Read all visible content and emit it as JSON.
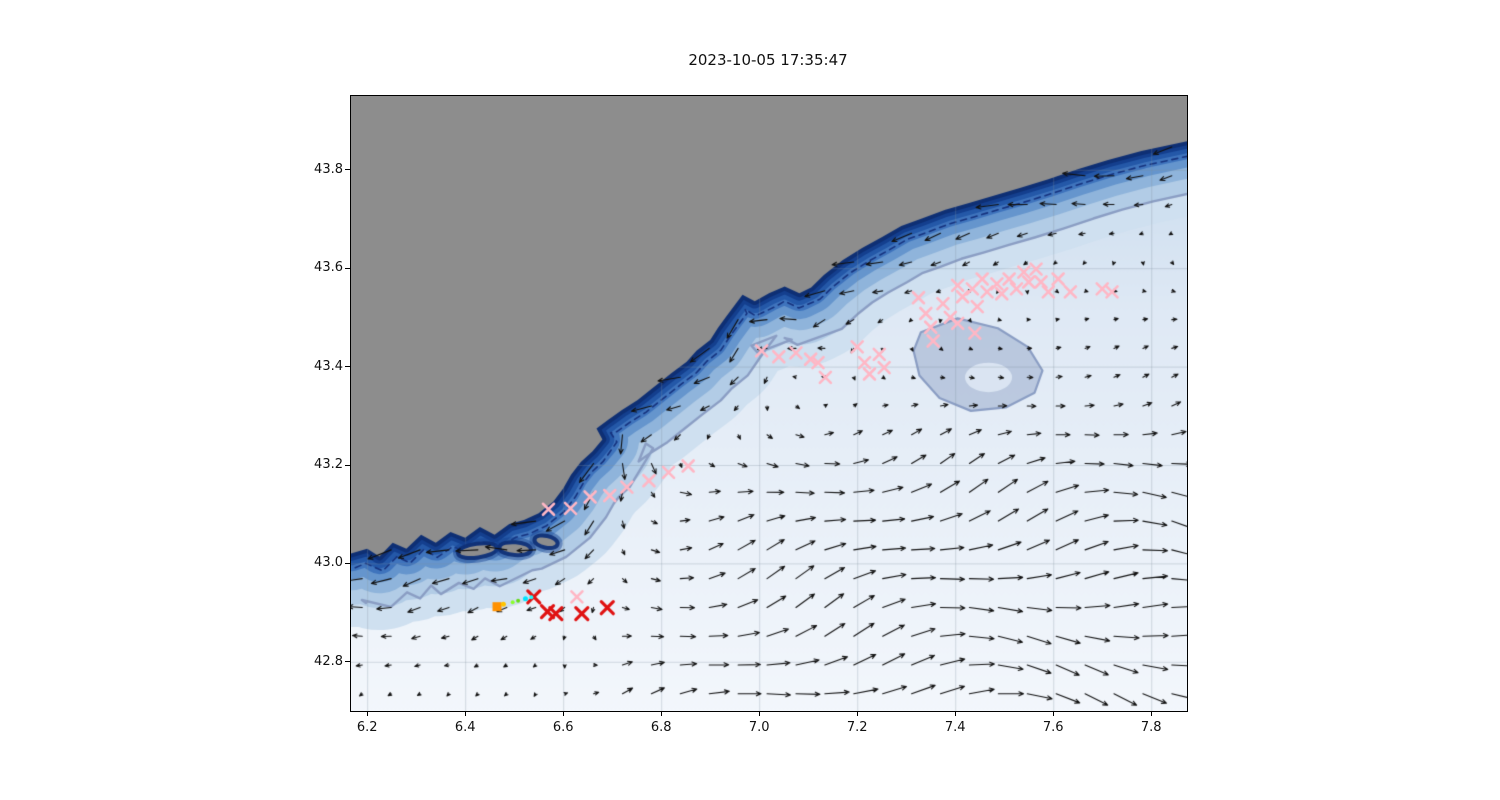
{
  "figure": {
    "background": "#ffffff"
  },
  "chart_data": {
    "type": "scatter",
    "title": "2023-10-05 17:35:47",
    "xlabel": "",
    "ylabel": "",
    "xlim": [
      6.167,
      7.873
    ],
    "ylim": [
      42.7,
      43.95
    ],
    "xticks": [
      6.2,
      6.4,
      6.6,
      6.8,
      7.0,
      7.2,
      7.4,
      7.6,
      7.8
    ],
    "xtick_labels": [
      "6.2",
      "6.4",
      "6.6",
      "6.8",
      "7.0",
      "7.2",
      "7.4",
      "7.6",
      "7.8"
    ],
    "yticks": [
      42.8,
      43.0,
      43.2,
      43.4,
      43.6,
      43.8
    ],
    "ytick_labels": [
      "42.8",
      "43.0",
      "43.2",
      "43.4",
      "43.6",
      "43.8"
    ],
    "grid": true,
    "legend": "none",
    "map": {
      "land_color": "#8d8d8d",
      "sea_gradient": [
        [
          "0",
          "#c3d8ec"
        ],
        [
          "0.35",
          "#dfe9f5"
        ],
        [
          "1",
          "#f3f7fc"
        ]
      ],
      "bath_bands": [
        [
          0.3,
          "#cfe0f0"
        ],
        [
          0.21,
          "#b2cce6"
        ],
        [
          0.15,
          "#8fb4db"
        ],
        [
          0.105,
          "#6595cd"
        ],
        [
          0.072,
          "#3f74bd"
        ],
        [
          0.048,
          "#2458a8"
        ],
        [
          0.03,
          "#143f8e"
        ],
        [
          0.016,
          "#0e2f74"
        ]
      ],
      "coastline": [
        [
          6.167,
          43.02
        ],
        [
          6.2,
          43.03
        ],
        [
          6.225,
          43.014
        ],
        [
          6.252,
          43.042
        ],
        [
          6.28,
          43.03
        ],
        [
          6.31,
          43.058
        ],
        [
          6.34,
          43.042
        ],
        [
          6.37,
          43.064
        ],
        [
          6.4,
          43.052
        ],
        [
          6.43,
          43.074
        ],
        [
          6.46,
          43.058
        ],
        [
          6.49,
          43.08
        ],
        [
          6.52,
          43.088
        ],
        [
          6.55,
          43.102
        ],
        [
          6.58,
          43.126
        ],
        [
          6.6,
          43.152
        ],
        [
          6.616,
          43.18
        ],
        [
          6.636,
          43.206
        ],
        [
          6.66,
          43.228
        ],
        [
          6.68,
          43.252
        ],
        [
          6.668,
          43.274
        ],
        [
          6.692,
          43.292
        ],
        [
          6.72,
          43.312
        ],
        [
          6.752,
          43.332
        ],
        [
          6.782,
          43.356
        ],
        [
          6.82,
          43.386
        ],
        [
          6.852,
          43.41
        ],
        [
          6.872,
          43.432
        ],
        [
          6.9,
          43.454
        ],
        [
          6.916,
          43.479
        ],
        [
          6.932,
          43.501
        ],
        [
          6.951,
          43.526
        ],
        [
          6.966,
          43.546
        ],
        [
          6.991,
          43.533
        ],
        [
          7.02,
          43.549
        ],
        [
          7.052,
          43.563
        ],
        [
          7.082,
          43.549
        ],
        [
          7.106,
          43.561
        ],
        [
          7.132,
          43.586
        ],
        [
          7.17,
          43.616
        ],
        [
          7.21,
          43.641
        ],
        [
          7.25,
          43.663
        ],
        [
          7.29,
          43.686
        ],
        [
          7.332,
          43.701
        ],
        [
          7.38,
          43.719
        ],
        [
          7.43,
          43.733
        ],
        [
          7.48,
          43.748
        ],
        [
          7.532,
          43.763
        ],
        [
          7.59,
          43.781
        ],
        [
          7.65,
          43.801
        ],
        [
          7.712,
          43.82
        ],
        [
          7.78,
          43.838
        ],
        [
          7.873,
          43.858
        ]
      ],
      "islands": [
        {
          "x": 6.425,
          "y": 43.026,
          "rx": 0.036,
          "ry": 0.01,
          "rot": -8
        },
        {
          "x": 6.502,
          "y": 43.03,
          "rx": 0.028,
          "ry": 0.009,
          "rot": 4
        },
        {
          "x": 6.565,
          "y": 43.044,
          "rx": 0.02,
          "ry": 0.008,
          "rot": 12
        }
      ],
      "plateau": [
        [
          7.33,
          43.47
        ],
        [
          7.405,
          43.498
        ],
        [
          7.487,
          43.478
        ],
        [
          7.548,
          43.44
        ],
        [
          7.578,
          43.392
        ],
        [
          7.562,
          43.347
        ],
        [
          7.503,
          43.317
        ],
        [
          7.432,
          43.31
        ],
        [
          7.368,
          43.336
        ],
        [
          7.327,
          43.382
        ],
        [
          7.315,
          43.432
        ]
      ],
      "plateau_fill": "rgba(150,168,202,0.52)",
      "plateau_inner": {
        "x": 7.468,
        "y": 43.378,
        "rx": 0.048,
        "ry": 0.03
      },
      "contour_dashed": {
        "offset": 0.03,
        "color": "#16337f",
        "width": 1.6,
        "dash": [
          6,
          5
        ]
      },
      "contour_solid": {
        "offset": 0.105,
        "color": "#8b9ec4",
        "width": 2.4
      }
    },
    "quiver": {
      "color": "#111111",
      "x0": 6.19,
      "dx": 0.059,
      "cols": 29,
      "y0": 42.735,
      "dy": 0.0585,
      "rows": 20,
      "coastal_speed": 1.0,
      "coastal_decay": 0.13,
      "return_speed": 0.95,
      "return_decay": 0.24,
      "arrow_scale": 27,
      "max_len": 30,
      "head": 5,
      "min_coast_dist": 0.012
    },
    "series": [
      {
        "name": "observations-pink-x",
        "marker": "x",
        "color": "#ffb7c5",
        "size": 5.5,
        "stroke": 2.6,
        "points": [
          [
            6.57,
            43.11
          ],
          [
            6.615,
            43.112
          ],
          [
            6.655,
            43.135
          ],
          [
            6.695,
            43.138
          ],
          [
            6.73,
            43.155
          ],
          [
            6.775,
            43.168
          ],
          [
            6.815,
            43.185
          ],
          [
            6.855,
            43.198
          ],
          [
            7.005,
            43.432
          ],
          [
            7.04,
            43.42
          ],
          [
            7.075,
            43.428
          ],
          [
            7.105,
            43.415
          ],
          [
            7.12,
            43.408
          ],
          [
            7.135,
            43.378
          ],
          [
            7.2,
            43.44
          ],
          [
            7.215,
            43.408
          ],
          [
            7.245,
            43.425
          ],
          [
            7.255,
            43.398
          ],
          [
            7.225,
            43.385
          ],
          [
            7.325,
            43.54
          ],
          [
            7.34,
            43.508
          ],
          [
            7.35,
            43.48
          ],
          [
            7.355,
            43.452
          ],
          [
            7.375,
            43.528
          ],
          [
            7.39,
            43.5
          ],
          [
            7.405,
            43.565
          ],
          [
            7.415,
            43.542
          ],
          [
            7.435,
            43.558
          ],
          [
            7.445,
            43.522
          ],
          [
            7.455,
            43.578
          ],
          [
            7.465,
            43.552
          ],
          [
            7.485,
            43.568
          ],
          [
            7.495,
            43.548
          ],
          [
            7.51,
            43.578
          ],
          [
            7.525,
            43.558
          ],
          [
            7.54,
            43.592
          ],
          [
            7.55,
            43.572
          ],
          [
            7.565,
            43.598
          ],
          [
            7.575,
            43.572
          ],
          [
            7.59,
            43.552
          ],
          [
            7.61,
            43.578
          ],
          [
            7.635,
            43.552
          ],
          [
            7.7,
            43.558
          ],
          [
            7.72,
            43.552
          ],
          [
            7.405,
            43.488
          ],
          [
            7.44,
            43.468
          ],
          [
            6.628,
            42.932
          ]
        ]
      },
      {
        "name": "observations-red-x",
        "marker": "x",
        "color": "#e01212",
        "size": 6,
        "stroke": 3.2,
        "points": [
          [
            6.54,
            42.932
          ],
          [
            6.568,
            42.902
          ],
          [
            6.585,
            42.898
          ],
          [
            6.638,
            42.898
          ],
          [
            6.69,
            42.91
          ]
        ]
      },
      {
        "name": "release-point-markers",
        "marker": "mixed",
        "points": [
          {
            "x": 6.465,
            "y": 42.912,
            "color": "#ff9100",
            "shape": "square",
            "size": 9
          },
          {
            "x": 6.478,
            "y": 42.917,
            "color": "#ffc400",
            "shape": "circle",
            "size": 5
          },
          {
            "x": 6.497,
            "y": 42.921,
            "color": "#8cff2e",
            "shape": "circle",
            "size": 4
          },
          {
            "x": 6.508,
            "y": 42.924,
            "color": "#64dd17",
            "shape": "circle",
            "size": 4
          },
          {
            "x": 6.523,
            "y": 42.928,
            "color": "#00e5ff",
            "shape": "circle",
            "size": 5
          },
          {
            "x": 6.535,
            "y": 42.931,
            "color": "#18ffff",
            "shape": "circle",
            "size": 4
          }
        ]
      }
    ]
  }
}
